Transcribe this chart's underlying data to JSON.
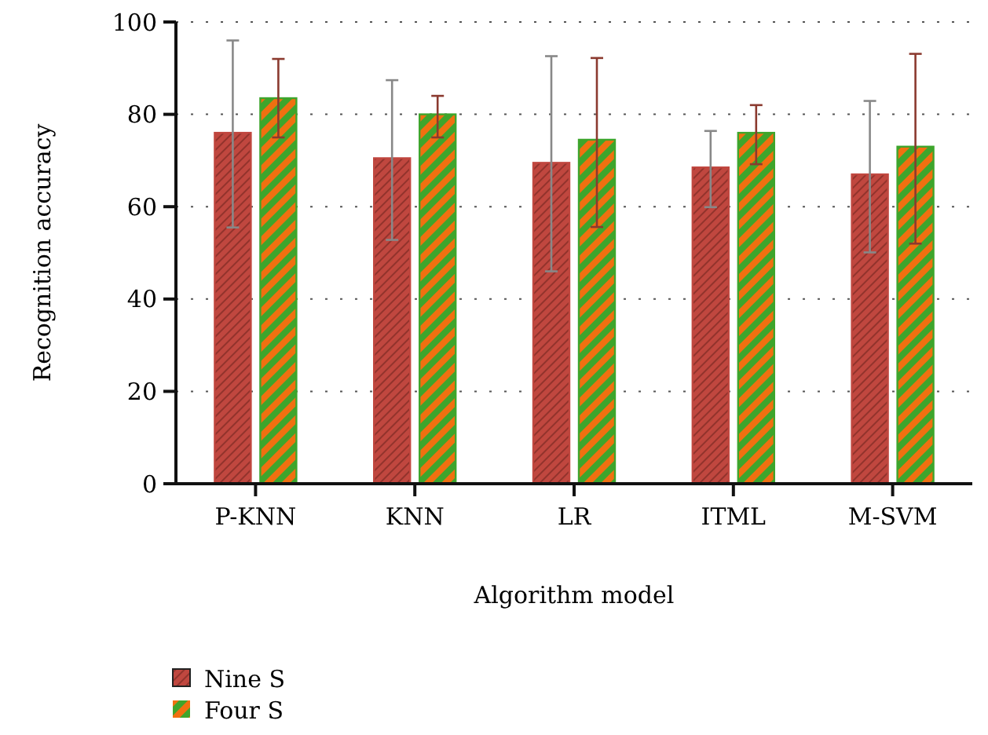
{
  "chart_data": {
    "type": "bar",
    "xlabel": "Algorithm model",
    "ylabel": "Recognition accuracy",
    "categories": [
      "P-KNN",
      "KNN",
      "LR",
      "ITML",
      "M-SVM"
    ],
    "series": [
      {
        "name": "Nine S",
        "color": "#c0473f",
        "values": [
          76,
          70.5,
          69.5,
          68.5,
          67
        ],
        "errors": [
          [
            55.5,
            96
          ],
          [
            52.8,
            87.4
          ],
          [
            46,
            92.6
          ],
          [
            59.9,
            76.4
          ],
          [
            50.1,
            82.9
          ]
        ]
      },
      {
        "name": "Four S",
        "color": "#3ea52c",
        "values": [
          83.5,
          80,
          74.5,
          76,
          73
        ],
        "errors": [
          [
            75,
            92
          ],
          [
            75,
            84
          ],
          [
            55.6,
            92.2
          ],
          [
            69.2,
            82
          ],
          [
            52,
            93.1
          ]
        ]
      }
    ],
    "ylim": [
      0,
      100
    ],
    "yticks": [
      0,
      20,
      40,
      60,
      80,
      100
    ],
    "grid": "y",
    "legend": "bottom left"
  }
}
